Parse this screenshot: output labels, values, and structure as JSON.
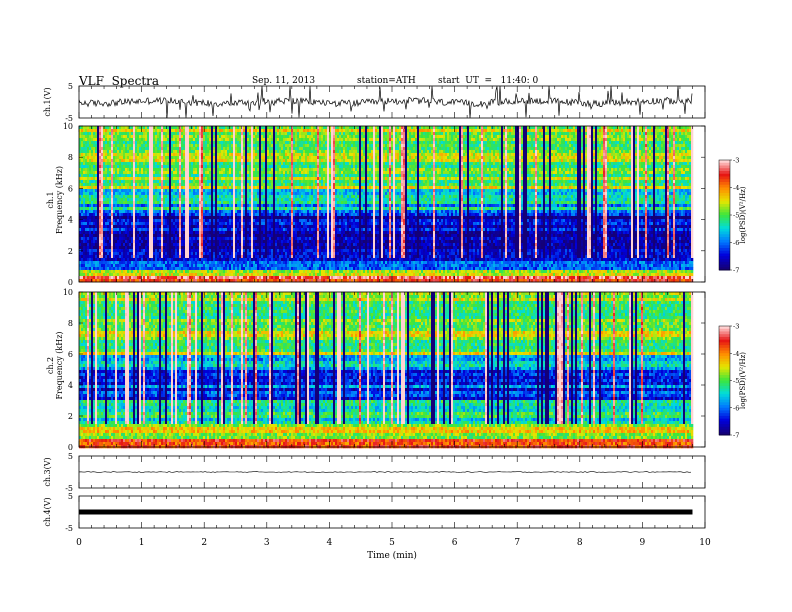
{
  "header": {
    "title": "VLF  Spectra",
    "date": "Sep. 11, 2013",
    "station": "station=ATH",
    "start": "start  UT  =   11:40: 0"
  },
  "chart_data": [
    {
      "type": "line",
      "panel": "ch1-waveform",
      "ylabel": "ch.1(V)",
      "ylim": [
        -5,
        5
      ],
      "yticks": [
        "5",
        "-5"
      ],
      "description_level": "noisy trace around 0 V with frequent spikes",
      "baseline": 0.0
    },
    {
      "type": "heatmap",
      "panel": "ch1-spectrogram",
      "ylabel": "ch.1\nFrequency (kHz)",
      "ylim": [
        0,
        10
      ],
      "yticks": [
        "0",
        "2",
        "4",
        "6",
        "8",
        "10"
      ],
      "xlim": [
        0,
        9.8
      ],
      "colorbar": {
        "label": "log(PSD)(V²/Hz)",
        "range": [
          -7,
          -3
        ],
        "ticks": [
          "-3",
          "-4",
          "-5",
          "-6",
          "-7"
        ]
      },
      "bands": [
        {
          "from": 0,
          "to": 0.3,
          "level": -3.6
        },
        {
          "from": 0.3,
          "to": 0.8,
          "level": -4.6
        },
        {
          "from": 0.8,
          "to": 2.0,
          "level": -6.4
        },
        {
          "from": 2.0,
          "to": 4.5,
          "level": -6.6
        },
        {
          "from": 4.5,
          "to": 6.0,
          "level": -5.6
        },
        {
          "from": 6.0,
          "to": 10.0,
          "level": -4.8
        }
      ]
    },
    {
      "type": "heatmap",
      "panel": "ch2-spectrogram",
      "ylabel": "ch.2\nFrequency (kHz)",
      "ylim": [
        0,
        10
      ],
      "yticks": [
        "0",
        "2",
        "4",
        "6",
        "8",
        "10"
      ],
      "xlim": [
        0,
        9.8
      ],
      "colorbar": {
        "label": "log(PSD)(V²/Hz)",
        "range": [
          -7,
          -3
        ],
        "ticks": [
          "-3",
          "-4",
          "-5",
          "-6",
          "-7"
        ]
      },
      "bands": [
        {
          "from": 0,
          "to": 0.6,
          "level": -4.0
        },
        {
          "from": 0.6,
          "to": 1.5,
          "level": -4.5
        },
        {
          "from": 1.5,
          "to": 3.0,
          "level": -5.4
        },
        {
          "from": 3.0,
          "to": 5.0,
          "level": -6.2
        },
        {
          "from": 5.0,
          "to": 6.0,
          "level": -5.8
        },
        {
          "from": 6.0,
          "to": 10.0,
          "level": -4.8
        }
      ]
    },
    {
      "type": "line",
      "panel": "ch3-waveform",
      "ylabel": "ch.3(V)",
      "ylim": [
        -5,
        5
      ],
      "yticks": [
        "5",
        "-5"
      ],
      "baseline": 0.0
    },
    {
      "type": "line",
      "panel": "ch4-waveform",
      "ylabel": "ch.4(V)",
      "ylim": [
        -5,
        5
      ],
      "yticks": [
        "5",
        "-5"
      ],
      "baseline": 0.0
    }
  ],
  "xaxis": {
    "label": "Time (min)",
    "range": [
      0,
      10
    ],
    "ticks": [
      "0",
      "1",
      "2",
      "3",
      "4",
      "5",
      "6",
      "7",
      "8",
      "9",
      "10"
    ],
    "data_end": 9.8
  }
}
